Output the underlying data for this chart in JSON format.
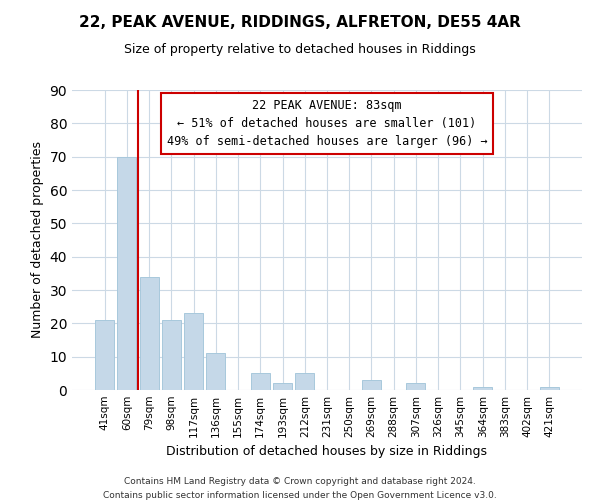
{
  "title": "22, PEAK AVENUE, RIDDINGS, ALFRETON, DE55 4AR",
  "subtitle": "Size of property relative to detached houses in Riddings",
  "xlabel": "Distribution of detached houses by size in Riddings",
  "ylabel": "Number of detached properties",
  "bar_labels": [
    "41sqm",
    "60sqm",
    "79sqm",
    "98sqm",
    "117sqm",
    "136sqm",
    "155sqm",
    "174sqm",
    "193sqm",
    "212sqm",
    "231sqm",
    "250sqm",
    "269sqm",
    "288sqm",
    "307sqm",
    "326sqm",
    "345sqm",
    "364sqm",
    "383sqm",
    "402sqm",
    "421sqm"
  ],
  "bar_values": [
    21,
    70,
    34,
    21,
    23,
    11,
    0,
    5,
    2,
    5,
    0,
    0,
    3,
    0,
    2,
    0,
    0,
    1,
    0,
    0,
    1
  ],
  "bar_color": "#c5d8e8",
  "bar_edge_color": "#a8c8dc",
  "vline_color": "#cc0000",
  "ylim": [
    0,
    90
  ],
  "yticks": [
    0,
    10,
    20,
    30,
    40,
    50,
    60,
    70,
    80,
    90
  ],
  "annotation_title": "22 PEAK AVENUE: 83sqm",
  "annotation_line1": "← 51% of detached houses are smaller (101)",
  "annotation_line2": "49% of semi-detached houses are larger (96) →",
  "footnote1": "Contains HM Land Registry data © Crown copyright and database right 2024.",
  "footnote2": "Contains public sector information licensed under the Open Government Licence v3.0.",
  "background_color": "#ffffff",
  "grid_color": "#ccd9e5"
}
